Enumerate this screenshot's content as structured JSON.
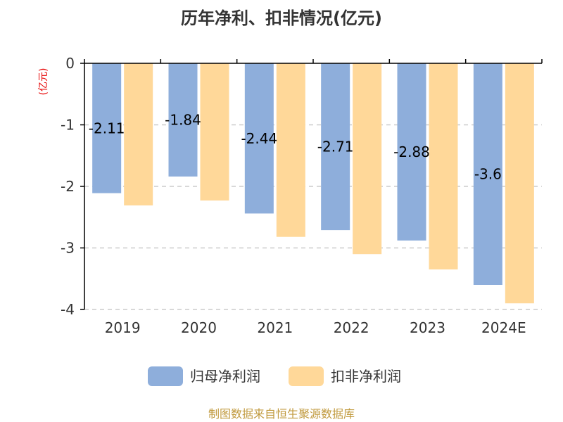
{
  "chart_data": {
    "type": "bar",
    "title": "历年净利、扣非情况(亿元)",
    "ylabel": "(亿元)",
    "xlabel": "",
    "ylim": [
      -4,
      0
    ],
    "yticks": [
      0,
      -1,
      -2,
      -3,
      -4
    ],
    "ytick_labels": [
      "0",
      "-1",
      "-2",
      "-3",
      "-4"
    ],
    "categories": [
      "2019",
      "2020",
      "2021",
      "2022",
      "2023",
      "2024E"
    ],
    "series": [
      {
        "name": "归母净利润",
        "color": "#8eaedb",
        "values": [
          -2.11,
          -1.84,
          -2.44,
          -2.71,
          -2.88,
          -3.6
        ],
        "labels": [
          "-2.11",
          "-1.84",
          "-2.44",
          "-2.71",
          "-2.88",
          "-3.6"
        ]
      },
      {
        "name": "扣非净利润",
        "color": "#ffd899",
        "values": [
          -2.31,
          -2.23,
          -2.82,
          -3.1,
          -3.35,
          -3.9
        ]
      }
    ],
    "grid": true,
    "legend_position": "bottom-center"
  },
  "source": "制图数据来自恒生聚源数据库"
}
